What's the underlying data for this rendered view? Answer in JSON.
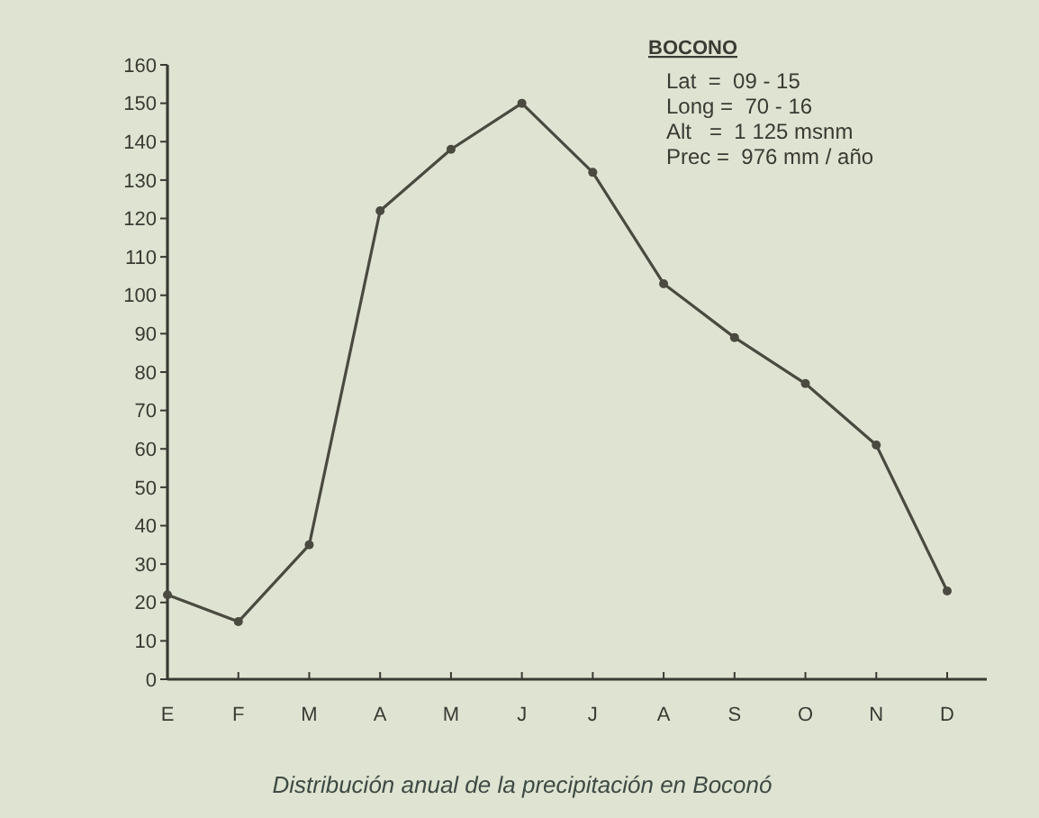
{
  "chart_data": {
    "type": "line",
    "title": "Distribución anual de la precipitación en Boconó",
    "categories": [
      "E",
      "F",
      "M",
      "A",
      "M",
      "J",
      "J",
      "A",
      "S",
      "O",
      "N",
      "D"
    ],
    "series": [
      {
        "color": "#4a4a40",
        "values": [
          22,
          15,
          35,
          122,
          138,
          150,
          132,
          103,
          89,
          77,
          61,
          23
        ]
      }
    ],
    "ylim": [
      0,
      160
    ],
    "yticks": [
      0,
      10,
      20,
      30,
      40,
      50,
      60,
      70,
      80,
      90,
      100,
      110,
      120,
      130,
      140,
      150,
      160
    ],
    "grid": false,
    "marker": "circle",
    "line_style": "solid",
    "annotations": [
      "BOCONO",
      "Lat  =  09 - 15",
      "Long =  70 - 16",
      "Alt   =  1 125 msnm",
      "Prec =  976 mm / año"
    ]
  }
}
